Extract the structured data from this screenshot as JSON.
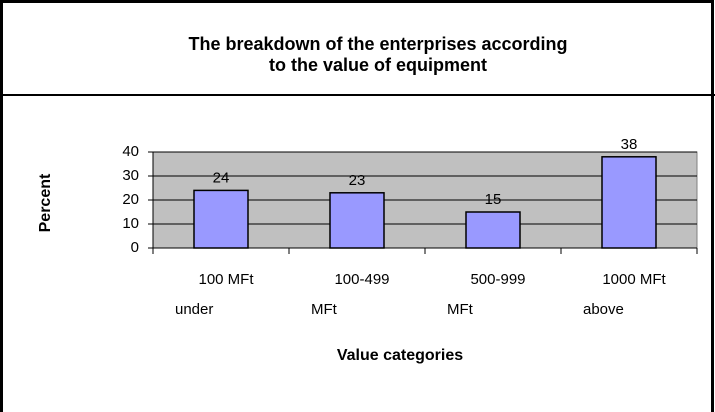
{
  "chart_data": {
    "type": "bar",
    "title": [
      "The breakdown of the enterprises according",
      "to the value of equipment"
    ],
    "categories": [
      [
        "100 MFt",
        "under"
      ],
      [
        "100-499",
        "MFt"
      ],
      [
        "500-999",
        "MFt"
      ],
      [
        "1000 MFt",
        "above"
      ]
    ],
    "values": [
      24,
      23,
      15,
      38
    ],
    "color": "#9999ff",
    "ylim": [
      0,
      40
    ],
    "yticks": [
      0,
      10,
      20,
      30,
      40
    ],
    "grid": true,
    "ylabel": "Percent",
    "xlabel": "Value categories"
  }
}
